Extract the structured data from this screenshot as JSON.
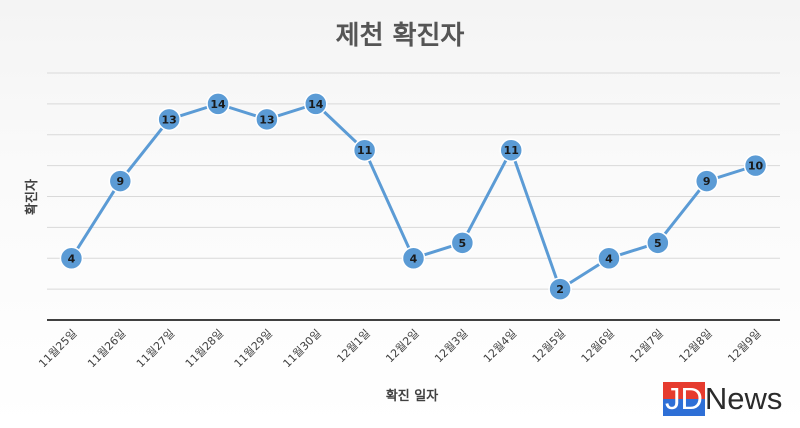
{
  "chart_data": {
    "type": "line",
    "title": "제천 확진자",
    "xlabel": "확진 일자",
    "ylabel": "확진자",
    "categories": [
      "11월25일",
      "11월26일",
      "11월27일",
      "11월28일",
      "11월29일",
      "11월30일",
      "12월1일",
      "12월2일",
      "12월3일",
      "12월4일",
      "12월5일",
      "12월6일",
      "12월7일",
      "12월8일",
      "12월9일"
    ],
    "series": [
      {
        "values": [
          4,
          9,
          13,
          14,
          13,
          14,
          11,
          4,
          5,
          11,
          2,
          4,
          5,
          9,
          10
        ]
      }
    ],
    "ylim": [
      0,
      16
    ],
    "grid": true,
    "legend": "none",
    "data_labels": true,
    "colors": {
      "line": "#5b9bd5",
      "marker": "#5b9bd5",
      "marker_border": "#ffffff",
      "gridline": "#d9d9d9",
      "axis": "#404040"
    }
  },
  "logo": {
    "part1": "JD",
    "part2": "News"
  }
}
